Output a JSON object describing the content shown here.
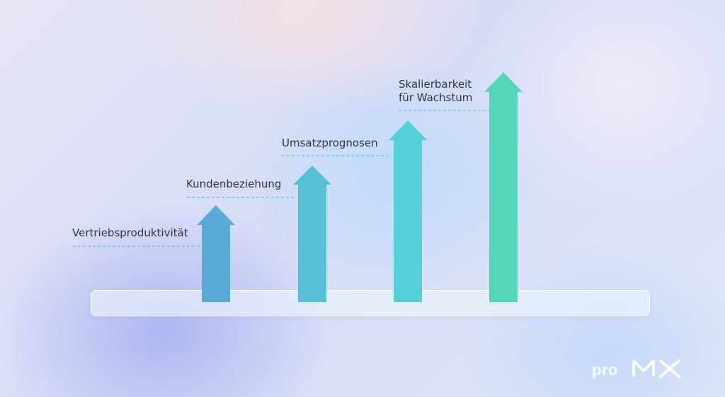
{
  "steps": [
    {
      "label_lines": [
        "Vertriebsproduktivität"
      ],
      "color": "#5aaad6"
    },
    {
      "label_lines": [
        "Kundenbeziehung"
      ],
      "color": "#58c0d6"
    },
    {
      "label_lines": [
        "Umsatzprognosen"
      ],
      "color": "#56d0d8"
    },
    {
      "label_lines": [
        "Skalierbarkeit",
        "für Wachstum"
      ],
      "color": "#56d6b8"
    }
  ],
  "logo": {
    "pro": "pro",
    "mx": "MX"
  }
}
